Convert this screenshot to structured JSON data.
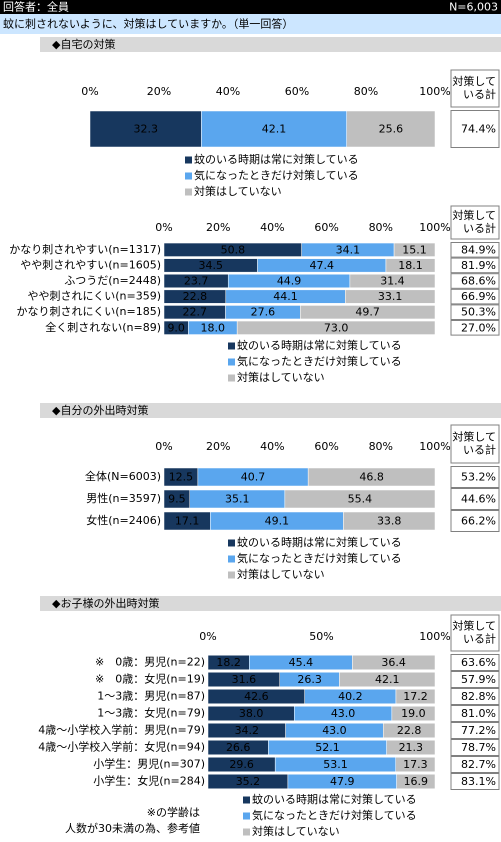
{
  "header": {
    "respondents": "回答者：全員",
    "n": "N=6,003",
    "question": "蚊に刺されないように、対策はしていますか。（単一回答）"
  },
  "chart_data": [
    {
      "type": "bar",
      "title": "◆自宅の対策",
      "categories": [
        null
      ],
      "series": [
        {
          "name": "蚊のいる時期は常に対策している",
          "color": "#17375e",
          "values": [
            32.3
          ]
        },
        {
          "name": "気になったときだけ対策している",
          "color": "#5aa6ee",
          "values": [
            42.1
          ]
        },
        {
          "name": "対策はしていない",
          "color": "#bfbfbf",
          "values": [
            25.6
          ]
        }
      ],
      "xlim": [
        0,
        100
      ],
      "xticks": [
        {
          "value": 0,
          "label": "0%"
        },
        {
          "value": 20,
          "label": "20%"
        },
        {
          "value": 40,
          "label": "40%"
        },
        {
          "value": 60,
          "label": "60%"
        },
        {
          "value": 80,
          "label": "80%"
        },
        {
          "value": 100,
          "label": "100%"
        }
      ],
      "total_header": [
        "対策して",
        "いる計"
      ],
      "totals": [
        74.4
      ],
      "total_labels": [
        "74.4%"
      ]
    },
    {
      "type": "bar",
      "categories": [
        "かなり刺されやすい(n=1317)",
        "やや刺されやすい(n=1605)",
        "ふつうだ(n=2448)",
        "やや刺されにくい(n=359)",
        "かなり刺されにくい(n=185)",
        "全く刺されない(n=89)"
      ],
      "series": [
        {
          "name": "蚊のいる時期は常に対策している",
          "color": "#17375e",
          "values": [
            50.8,
            34.5,
            23.7,
            22.8,
            22.7,
            9.0
          ],
          "value_labels": [
            "50.8",
            "34.5",
            "23.7",
            "22.8",
            "22.7",
            "9.0"
          ]
        },
        {
          "name": "気になったときだけ対策している",
          "color": "#5aa6ee",
          "values": [
            34.1,
            47.4,
            44.9,
            44.1,
            27.6,
            18.0
          ],
          "value_labels": [
            "34.1",
            "47.4",
            "44.9",
            "44.1",
            "27.6",
            "18.0"
          ]
        },
        {
          "name": "対策はしていない",
          "color": "#bfbfbf",
          "values": [
            15.1,
            18.1,
            31.4,
            33.1,
            49.7,
            73.0
          ],
          "value_labels": [
            "15.1",
            "18.1",
            "31.4",
            "33.1",
            "49.7",
            "73.0"
          ]
        }
      ],
      "xlim": [
        0,
        100
      ],
      "xticks": [
        {
          "value": 0,
          "label": "0%"
        },
        {
          "value": 20,
          "label": "20%"
        },
        {
          "value": 40,
          "label": "40%"
        },
        {
          "value": 60,
          "label": "60%"
        },
        {
          "value": 80,
          "label": "80%"
        },
        {
          "value": 100,
          "label": "100%"
        }
      ],
      "total_header": [
        "対策して",
        "いる計"
      ],
      "totals": [
        84.9,
        81.9,
        68.6,
        66.9,
        50.3,
        27.0
      ],
      "total_labels": [
        "84.9%",
        "81.9%",
        "68.6%",
        "66.9%",
        "50.3%",
        "27.0%"
      ]
    },
    {
      "type": "bar",
      "title": "◆自分の外出時対策",
      "categories": [
        "全体(N=6003)",
        "男性(n=3597)",
        "女性(n=2406)"
      ],
      "series": [
        {
          "name": "蚊のいる時期は常に対策している",
          "color": "#17375e",
          "values": [
            12.5,
            9.5,
            17.1
          ]
        },
        {
          "name": "気になったときだけ対策している",
          "color": "#5aa6ee",
          "values": [
            40.7,
            35.1,
            49.1
          ]
        },
        {
          "name": "対策はしていない",
          "color": "#bfbfbf",
          "values": [
            46.8,
            55.4,
            33.8
          ]
        }
      ],
      "xlim": [
        0,
        100
      ],
      "xticks": [
        {
          "value": 0,
          "label": "0%"
        },
        {
          "value": 20,
          "label": "20%"
        },
        {
          "value": 40,
          "label": "40%"
        },
        {
          "value": 60,
          "label": "60%"
        },
        {
          "value": 80,
          "label": "80%"
        },
        {
          "value": 100,
          "label": "100%"
        }
      ],
      "total_header": [
        "対策して",
        "いる計"
      ],
      "totals": [
        53.2,
        44.6,
        66.2
      ],
      "total_labels": [
        "53.2%",
        "44.6%",
        "66.2%"
      ]
    },
    {
      "type": "bar",
      "title": "◆お子様の外出時対策",
      "categories": [
        "※　0歳：男児(n=22)",
        "※　0歳：女児(n=19)",
        "1～3歳：男児(n=87)",
        "1～3歳：女児(n=79)",
        "4歳～小学校入学前：男児(n=79)",
        "4歳～小学校入学前：女児(n=94)",
        "小学生：男児(n=307)",
        "小学生：女児(n=284)"
      ],
      "category_colors": [
        "#0000cc",
        "#e0207f",
        "#0000cc",
        "#e0207f",
        "#0000cc",
        "#e0207f",
        "#0000cc",
        "#e0207f"
      ],
      "series": [
        {
          "name": "蚊のいる時期は常に対策している",
          "color": "#17375e",
          "values": [
            18.2,
            31.6,
            42.6,
            38.0,
            34.2,
            26.6,
            29.6,
            35.2
          ],
          "value_labels": [
            "18.2",
            "31.6",
            "42.6",
            "38.0",
            "34.2",
            "26.6",
            "29.6",
            "35.2"
          ]
        },
        {
          "name": "気になったときだけ対策している",
          "color": "#5aa6ee",
          "values": [
            45.4,
            26.3,
            40.2,
            43.0,
            43.0,
            52.1,
            53.1,
            47.9
          ],
          "value_labels": [
            "45.4",
            "26.3",
            "40.2",
            "43.0",
            "43.0",
            "52.1",
            "53.1",
            "47.9"
          ]
        },
        {
          "name": "対策はしていない",
          "color": "#bfbfbf",
          "values": [
            36.4,
            42.1,
            17.2,
            19.0,
            22.8,
            21.3,
            17.3,
            16.9
          ],
          "value_labels": [
            "36.4",
            "42.1",
            "17.2",
            "19.0",
            "22.8",
            "21.3",
            "17.3",
            "16.9"
          ]
        }
      ],
      "xlim": [
        0,
        100
      ],
      "xticks": [
        {
          "value": 0,
          "label": "0%"
        },
        {
          "value": 50,
          "label": "50%"
        },
        {
          "value": 100,
          "label": "100%"
        }
      ],
      "total_header": [
        "対策して",
        "いる計"
      ],
      "totals": [
        63.6,
        57.9,
        82.8,
        81.0,
        77.2,
        78.7,
        82.7,
        83.1
      ],
      "total_labels": [
        "63.6%",
        "57.9%",
        "82.8%",
        "81.0%",
        "77.2%",
        "78.7%",
        "82.7%",
        "83.1%"
      ],
      "note": [
        "※の学齢は",
        "人数が30未満の為、参考値"
      ]
    }
  ]
}
